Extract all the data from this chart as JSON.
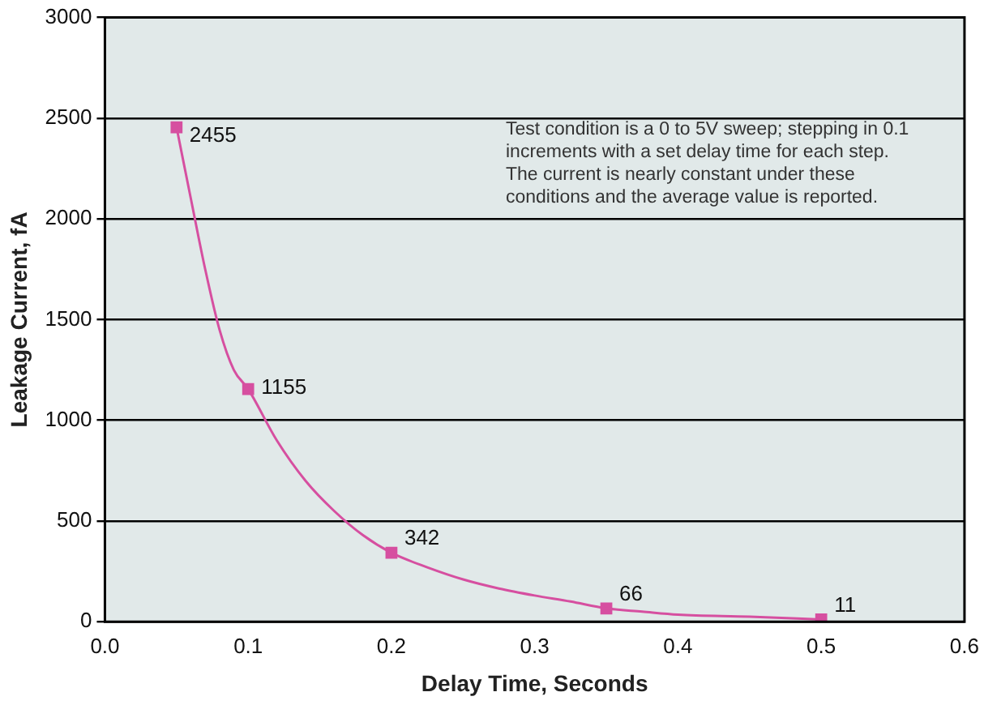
{
  "chart_data": {
    "type": "line",
    "xlabel": "Delay Time, Seconds",
    "ylabel": "Leakage Current, fA",
    "annotations": [
      "Test condition is a 0 to 5V sweep; stepping in 0.1 increments with a set delay time for each step. The current is nearly constant under these conditions and the average value is reported."
    ],
    "series": [
      {
        "color": "#d64fa0",
        "marker": "none",
        "x": [
          0.05,
          0.06,
          0.07,
          0.08,
          0.09,
          0.1,
          0.12,
          0.14,
          0.16,
          0.18,
          0.2,
          0.225,
          0.25,
          0.275,
          0.3,
          0.325,
          0.35,
          0.375,
          0.4,
          0.45,
          0.5
        ],
        "values": [
          2455,
          2100,
          1750,
          1450,
          1250,
          1155,
          900,
          700,
          550,
          430,
          342,
          270,
          210,
          165,
          130,
          100,
          66,
          50,
          35,
          25,
          11
        ]
      },
      {
        "type": "scatter",
        "color": "#d64fa0",
        "marker": "square",
        "x": [
          0.05,
          0.1,
          0.2,
          0.35,
          0.5
        ],
        "values": [
          2455,
          1155,
          342,
          66,
          11
        ],
        "value_labels": [
          "2455",
          "1155",
          "342",
          "66",
          "11"
        ]
      }
    ],
    "xlim": [
      0,
      0.6
    ],
    "xticks": [
      {
        "value": 0,
        "label": "0.0"
      },
      {
        "value": 0.1,
        "label": "0.1"
      },
      {
        "value": 0.2,
        "label": "0.2"
      },
      {
        "value": 0.3,
        "label": "0.3"
      },
      {
        "value": 0.4,
        "label": "0.4"
      },
      {
        "value": 0.5,
        "label": "0.5"
      },
      {
        "value": 0.6,
        "label": "0.6"
      }
    ],
    "ylim": [
      0,
      3000
    ],
    "yticks": [
      0,
      500,
      1000,
      1500,
      2000,
      2500,
      3000
    ],
    "grid": "y",
    "legend": false
  }
}
